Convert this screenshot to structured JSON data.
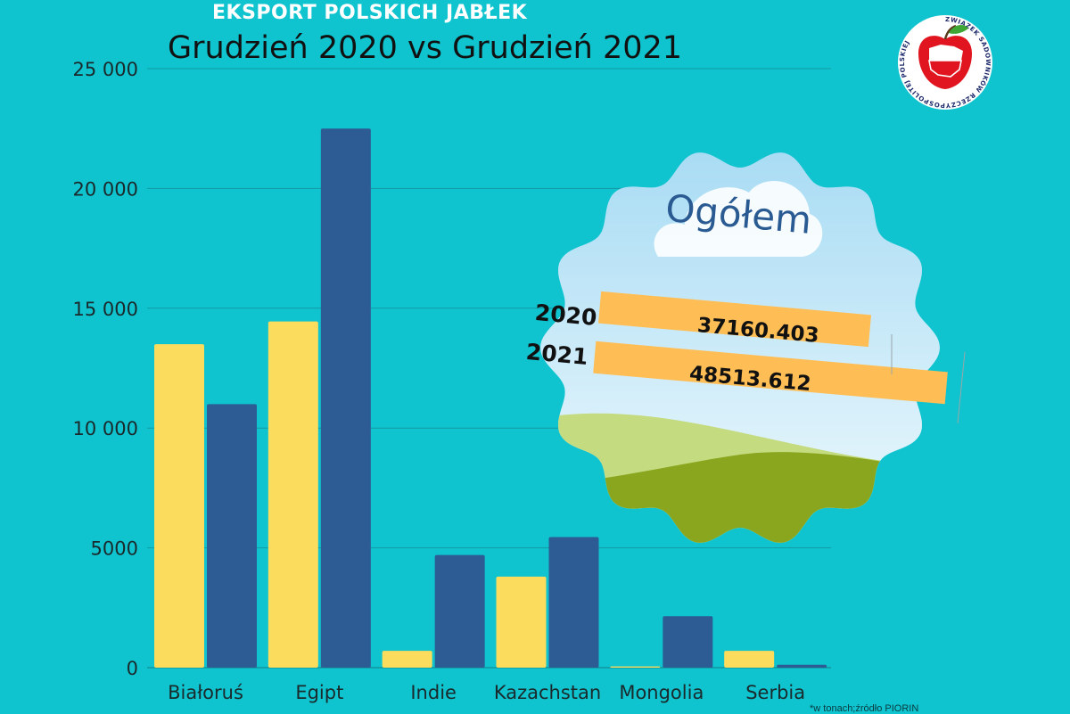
{
  "header": {
    "supertitle": "EKSPORT POLSKICH JABŁEK",
    "title": "Grudzień 2020 vs Grudzień 2021"
  },
  "footnote": "*w tonach;źródło PIORIN",
  "colors": {
    "background": "#0fc4cf",
    "series_2020": "#fcdc5c",
    "series_2021": "#2d5b94",
    "label_band": "#ffbe55"
  },
  "chart_data": {
    "type": "bar",
    "categories": [
      "Białoruś",
      "Egipt",
      "Indie",
      "Kazachstan",
      "Mongolia",
      "Serbia"
    ],
    "series": [
      {
        "name": "2020",
        "values": [
          13500,
          14450,
          700,
          3800,
          50,
          700
        ]
      },
      {
        "name": "2021",
        "values": [
          11000,
          22500,
          4700,
          5450,
          2150,
          120
        ]
      }
    ],
    "yticks": [
      0,
      5000,
      10000,
      15000,
      20000,
      25000
    ],
    "ytick_labels": [
      "0",
      "5000",
      "10 000",
      "15 000",
      "20 000",
      "25 000"
    ],
    "ylim": [
      0,
      25000
    ],
    "grid": true,
    "legend": "none",
    "xlabel": "",
    "ylabel": ""
  },
  "summary": {
    "heading": "Ogółem",
    "rows": [
      {
        "year": "2020",
        "value": "37160.403"
      },
      {
        "year": "2021",
        "value": "48513.612"
      }
    ]
  },
  "logo": {
    "ring_text": "ZWIĄZEK SADOWNIKÓW RZECZYPOSPOLITEJ POLSKIEJ",
    "icon": "apple-poland-map-icon"
  }
}
